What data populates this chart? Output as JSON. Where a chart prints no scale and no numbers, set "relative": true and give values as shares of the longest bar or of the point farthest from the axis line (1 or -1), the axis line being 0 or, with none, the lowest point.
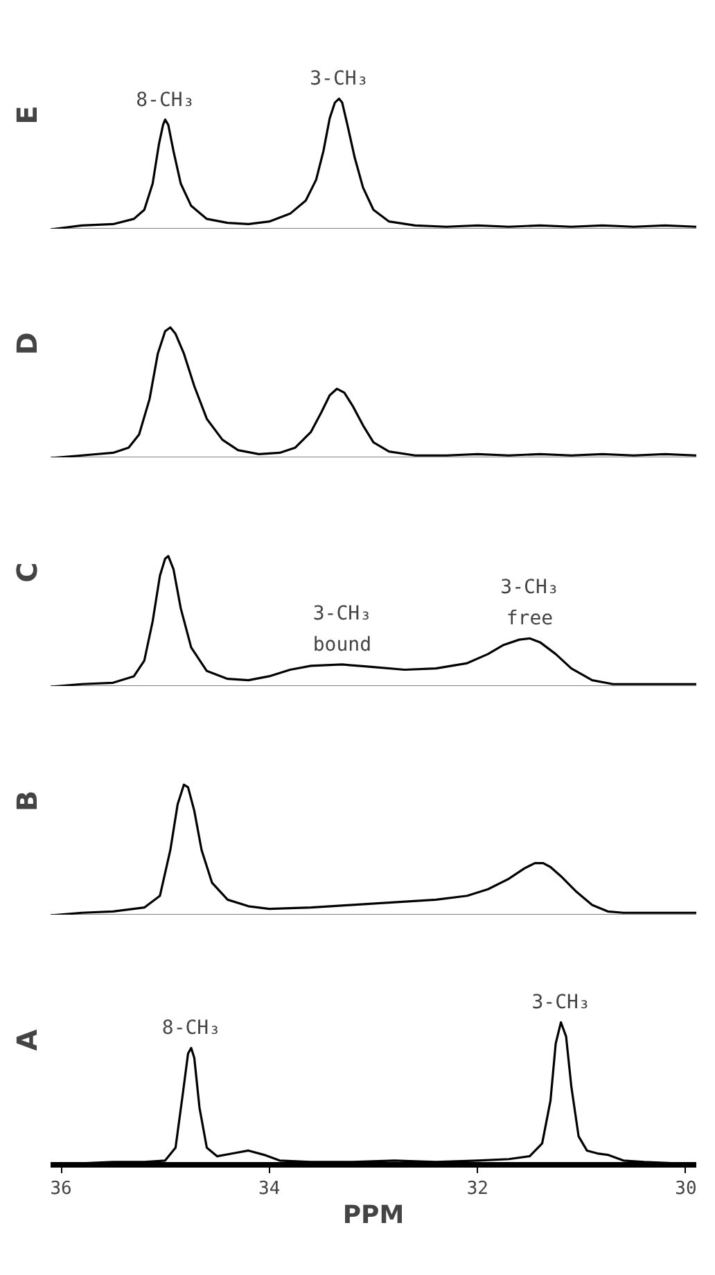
{
  "chart_data": [
    {
      "type": "line",
      "ylabel": "E",
      "relative": true,
      "xlim": [
        36.1,
        29.9
      ],
      "tick_labels": false,
      "grid": false,
      "marker": "none",
      "line_style": "solid",
      "annotations": [
        {
          "text": "8-CH₃",
          "x": 35.0,
          "y": 0.84
        },
        {
          "text": "3-CH₃",
          "x": 33.33,
          "y": 1.0
        }
      ],
      "series": [
        {
          "color": "#000000",
          "x": [
            36.1,
            35.8,
            35.5,
            35.3,
            35.2,
            35.12,
            35.06,
            35.02,
            35.0,
            34.97,
            34.92,
            34.85,
            34.75,
            34.6,
            34.4,
            34.2,
            34.0,
            33.8,
            33.65,
            33.55,
            33.48,
            33.42,
            33.37,
            33.33,
            33.3,
            33.25,
            33.18,
            33.1,
            33.0,
            32.85,
            32.6,
            32.3,
            32.0,
            31.7,
            31.4,
            31.1,
            30.8,
            30.5,
            30.2,
            29.9
          ],
          "values": [
            0,
            0.03,
            0.04,
            0.08,
            0.15,
            0.35,
            0.65,
            0.8,
            0.84,
            0.8,
            0.6,
            0.35,
            0.18,
            0.08,
            0.05,
            0.04,
            0.06,
            0.12,
            0.22,
            0.38,
            0.6,
            0.85,
            0.97,
            1.0,
            0.97,
            0.8,
            0.55,
            0.32,
            0.15,
            0.06,
            0.03,
            0.02,
            0.03,
            0.02,
            0.03,
            0.02,
            0.03,
            0.02,
            0.03,
            0.02
          ]
        }
      ]
    },
    {
      "type": "line",
      "ylabel": "D",
      "relative": true,
      "xlim": [
        36.1,
        29.9
      ],
      "tick_labels": false,
      "grid": false,
      "marker": "none",
      "line_style": "solid",
      "series": [
        {
          "color": "#000000",
          "x": [
            36.1,
            35.8,
            35.5,
            35.35,
            35.25,
            35.15,
            35.07,
            35.0,
            34.95,
            34.9,
            34.82,
            34.72,
            34.6,
            34.45,
            34.3,
            34.1,
            33.9,
            33.75,
            33.6,
            33.5,
            33.42,
            33.35,
            33.28,
            33.2,
            33.1,
            33.0,
            32.85,
            32.6,
            32.3,
            32.0,
            31.7,
            31.4,
            31.1,
            30.8,
            30.5,
            30.2,
            29.9
          ],
          "values": [
            0,
            0.02,
            0.04,
            0.08,
            0.18,
            0.45,
            0.8,
            0.97,
            1.0,
            0.95,
            0.8,
            0.55,
            0.3,
            0.14,
            0.06,
            0.03,
            0.04,
            0.08,
            0.2,
            0.35,
            0.48,
            0.53,
            0.5,
            0.4,
            0.25,
            0.12,
            0.05,
            0.02,
            0.02,
            0.03,
            0.02,
            0.03,
            0.02,
            0.03,
            0.02,
            0.03,
            0.02
          ]
        }
      ]
    },
    {
      "type": "line",
      "ylabel": "C",
      "relative": true,
      "xlim": [
        36.1,
        29.9
      ],
      "tick_labels": false,
      "grid": false,
      "marker": "none",
      "line_style": "solid",
      "annotations": [
        {
          "text": "3-CH₃\nbound",
          "x": 33.3,
          "y": 0.17
        },
        {
          "text": "3-CH₃\nfree",
          "x": 31.5,
          "y": 0.37
        }
      ],
      "series": [
        {
          "color": "#000000",
          "x": [
            36.1,
            35.8,
            35.5,
            35.3,
            35.2,
            35.12,
            35.05,
            35.0,
            34.97,
            34.92,
            34.85,
            34.75,
            34.6,
            34.4,
            34.2,
            34.0,
            33.8,
            33.6,
            33.3,
            33.0,
            32.7,
            32.4,
            32.1,
            31.9,
            31.75,
            31.6,
            31.5,
            31.4,
            31.25,
            31.1,
            30.9,
            30.7,
            30.5,
            30.2,
            29.9
          ],
          "values": [
            0,
            0.02,
            0.03,
            0.08,
            0.2,
            0.5,
            0.85,
            0.98,
            1.0,
            0.9,
            0.6,
            0.3,
            0.12,
            0.06,
            0.05,
            0.08,
            0.13,
            0.16,
            0.17,
            0.15,
            0.13,
            0.14,
            0.18,
            0.25,
            0.32,
            0.36,
            0.37,
            0.34,
            0.25,
            0.14,
            0.05,
            0.02,
            0.02,
            0.02,
            0.02
          ]
        }
      ]
    },
    {
      "type": "line",
      "ylabel": "B",
      "relative": true,
      "xlim": [
        36.1,
        29.9
      ],
      "tick_labels": false,
      "grid": false,
      "marker": "none",
      "line_style": "solid",
      "series": [
        {
          "color": "#000000",
          "x": [
            36.1,
            35.8,
            35.5,
            35.2,
            35.05,
            34.95,
            34.88,
            34.82,
            34.78,
            34.72,
            34.65,
            34.55,
            34.4,
            34.2,
            34.0,
            33.6,
            33.2,
            32.8,
            32.4,
            32.1,
            31.9,
            31.7,
            31.55,
            31.45,
            31.37,
            31.3,
            31.2,
            31.05,
            30.9,
            30.75,
            30.6,
            30.4,
            30.1,
            29.9
          ],
          "values": [
            0,
            0.02,
            0.03,
            0.06,
            0.15,
            0.5,
            0.85,
            1.0,
            0.98,
            0.8,
            0.5,
            0.25,
            0.12,
            0.07,
            0.05,
            0.06,
            0.08,
            0.1,
            0.12,
            0.15,
            0.2,
            0.28,
            0.36,
            0.4,
            0.4,
            0.37,
            0.3,
            0.18,
            0.08,
            0.03,
            0.02,
            0.02,
            0.02,
            0.02
          ]
        }
      ]
    },
    {
      "type": "line",
      "ylabel": "A",
      "relative": true,
      "xlim": [
        36.1,
        29.9
      ],
      "tick_labels": "x",
      "grid": false,
      "marker": "none",
      "line_style": "solid",
      "xlabel": "PPM",
      "xticks": [
        36,
        34,
        32,
        30
      ],
      "annotations": [
        {
          "text": "8-CH₃",
          "x": 34.75,
          "y": 0.82
        },
        {
          "text": "3-CH₃",
          "x": 31.2,
          "y": 1.0
        }
      ],
      "series": [
        {
          "color": "#000000",
          "x": [
            36.1,
            35.8,
            35.5,
            35.2,
            35.0,
            34.9,
            34.83,
            34.78,
            34.75,
            34.72,
            34.67,
            34.6,
            34.5,
            34.35,
            34.2,
            34.05,
            33.9,
            33.6,
            33.2,
            32.8,
            32.4,
            32.0,
            31.7,
            31.5,
            31.38,
            31.3,
            31.25,
            31.2,
            31.15,
            31.1,
            31.03,
            30.95,
            30.85,
            30.75,
            30.6,
            30.4,
            30.1,
            29.9
          ],
          "values": [
            0,
            0.01,
            0.02,
            0.02,
            0.03,
            0.12,
            0.5,
            0.78,
            0.82,
            0.75,
            0.4,
            0.12,
            0.06,
            0.08,
            0.1,
            0.07,
            0.03,
            0.02,
            0.02,
            0.03,
            0.02,
            0.03,
            0.04,
            0.06,
            0.15,
            0.45,
            0.85,
            1.0,
            0.9,
            0.55,
            0.2,
            0.1,
            0.08,
            0.07,
            0.03,
            0.02,
            0.01,
            0.01
          ]
        }
      ]
    }
  ]
}
